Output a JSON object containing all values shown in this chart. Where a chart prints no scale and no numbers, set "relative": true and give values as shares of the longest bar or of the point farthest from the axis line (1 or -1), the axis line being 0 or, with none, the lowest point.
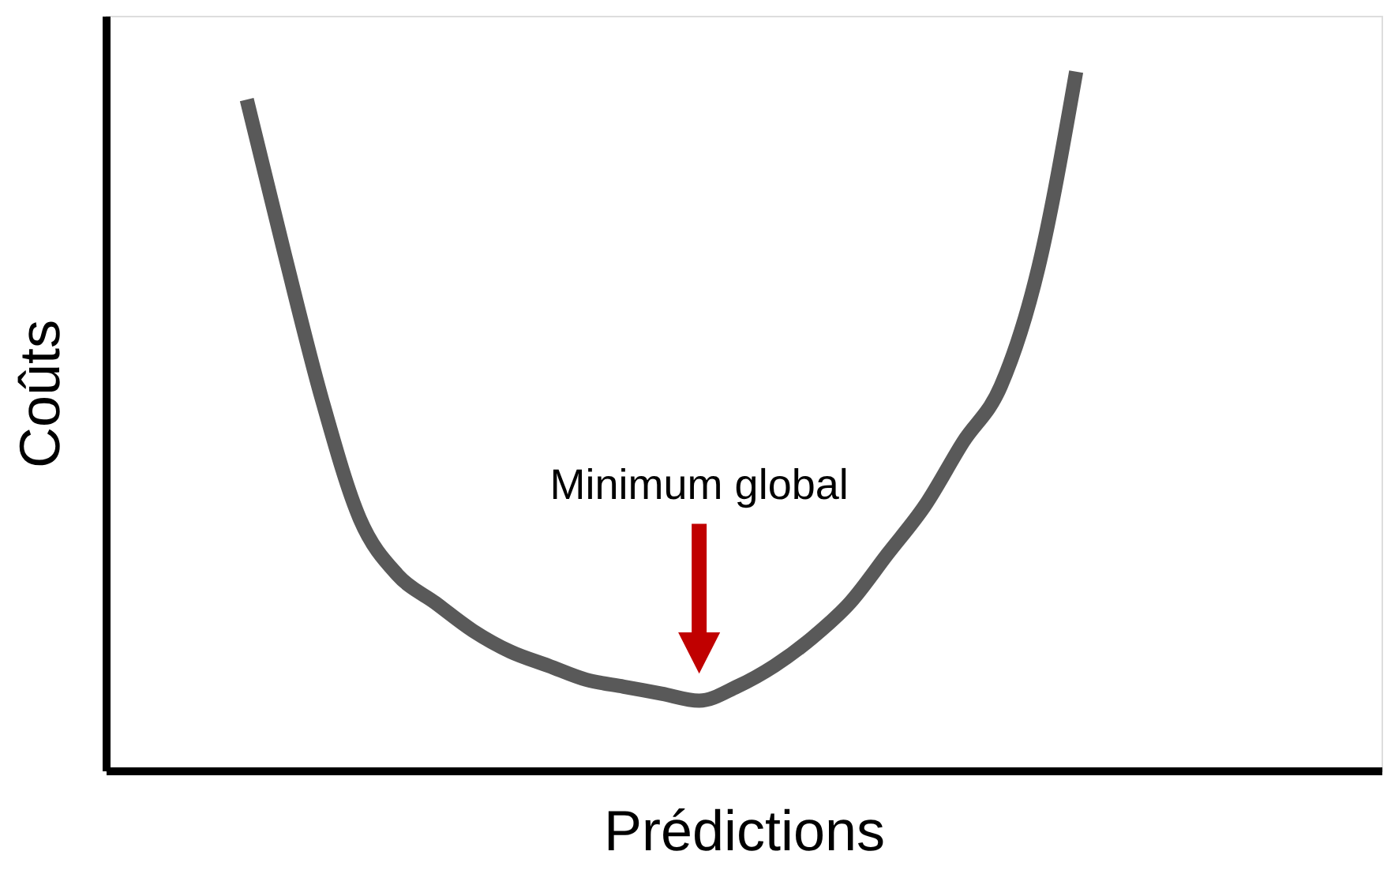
{
  "chart_data": {
    "type": "line",
    "relative": true,
    "xlabel": "Prédictions",
    "ylabel": "Coûts",
    "categories": [
      null,
      null,
      null,
      null,
      null,
      null,
      null,
      null,
      null,
      null,
      null,
      null,
      null,
      null,
      null,
      null,
      null,
      null,
      null,
      null,
      null,
      null,
      null
    ],
    "series": [
      {
        "color": "#595959",
        "values": [
          0.96,
          0.74,
          0.53,
          0.36,
          0.28,
          0.24,
          0.2,
          0.17,
          0.15,
          0.13,
          0.12,
          0.11,
          0.1,
          0.12,
          0.15,
          0.19,
          0.24,
          0.31,
          0.38,
          0.47,
          0.55,
          0.72,
          1
        ]
      }
    ],
    "annotations": [
      "Minimum global"
    ],
    "marker": "none",
    "line_style": "solid"
  }
}
